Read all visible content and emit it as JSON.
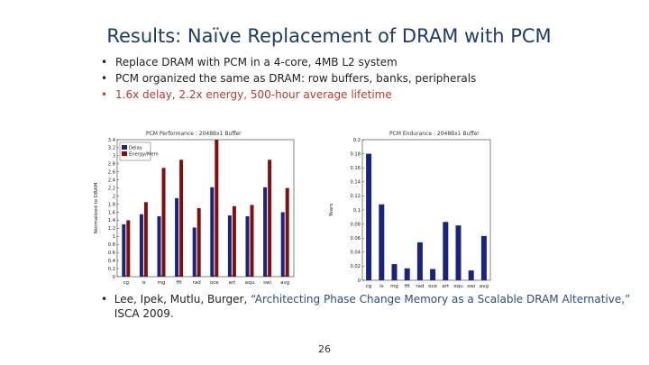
{
  "slide": {
    "title": "Results: Naïve Replacement of DRAM with PCM",
    "bullets": [
      {
        "bullet": "•",
        "text": "Replace DRAM with PCM in a 4-core, 4MB L2 system",
        "highlight": false
      },
      {
        "bullet": "•",
        "text": "PCM organized the same as DRAM: row buffers, banks, peripherals",
        "highlight": false
      },
      {
        "bullet": "•",
        "text": "1.6x delay, 2.2x energy, 500-hour average lifetime",
        "highlight": true
      }
    ],
    "reference_bullet": "•",
    "reference_authors": "Lee, Ipek, Mutlu, Burger, ",
    "reference_title": "“Architecting Phase Change Memory as a Scalable DRAM Alternative,”",
    "reference_venue": " ISCA 2009.",
    "page_number": "26"
  },
  "chart_data": [
    {
      "type": "bar",
      "title": "PCM Performance : 2048Bx1 Buffer",
      "ylabel": "Normalized to DRAM",
      "ylim": [
        0,
        3.4
      ],
      "yticks": [
        0,
        0.2,
        0.4,
        0.6,
        0.8,
        1,
        1.2,
        1.4,
        1.6,
        1.8,
        2,
        2.2,
        2.4,
        2.6,
        2.8,
        3,
        3.2,
        3.4
      ],
      "categories": [
        "cg",
        "is",
        "mg",
        "fft",
        "rad",
        "oce",
        "art",
        "equ",
        "swi",
        "avg"
      ],
      "series": [
        {
          "name": "Delay",
          "color": "#1a237e",
          "values": [
            1.3,
            1.55,
            1.5,
            1.95,
            1.22,
            2.22,
            1.52,
            1.5,
            2.22,
            1.6
          ]
        },
        {
          "name": "Energy/Mem",
          "color": "#7f1010",
          "values": [
            1.4,
            1.85,
            2.7,
            2.9,
            1.7,
            3.45,
            1.75,
            1.78,
            2.9,
            2.2
          ]
        }
      ],
      "legend": "top-left",
      "grid": false
    },
    {
      "type": "bar",
      "title": "PCM Endurance : 2048Bx1 Buffer",
      "ylabel": "Years",
      "ylim": [
        0,
        0.2
      ],
      "yticks": [
        0,
        0.02,
        0.04,
        0.06,
        0.08,
        0.1,
        0.12,
        0.14,
        0.16,
        0.18,
        0.2
      ],
      "categories": [
        "cg",
        "is",
        "mg",
        "fft",
        "rad",
        "oce",
        "art",
        "equ",
        "swi",
        "avg"
      ],
      "series": [
        {
          "color": "#1a237e",
          "values": [
            0.18,
            0.108,
            0.023,
            0.017,
            0.054,
            0.016,
            0.083,
            0.078,
            0.014,
            0.063
          ]
        }
      ],
      "grid": false
    }
  ]
}
